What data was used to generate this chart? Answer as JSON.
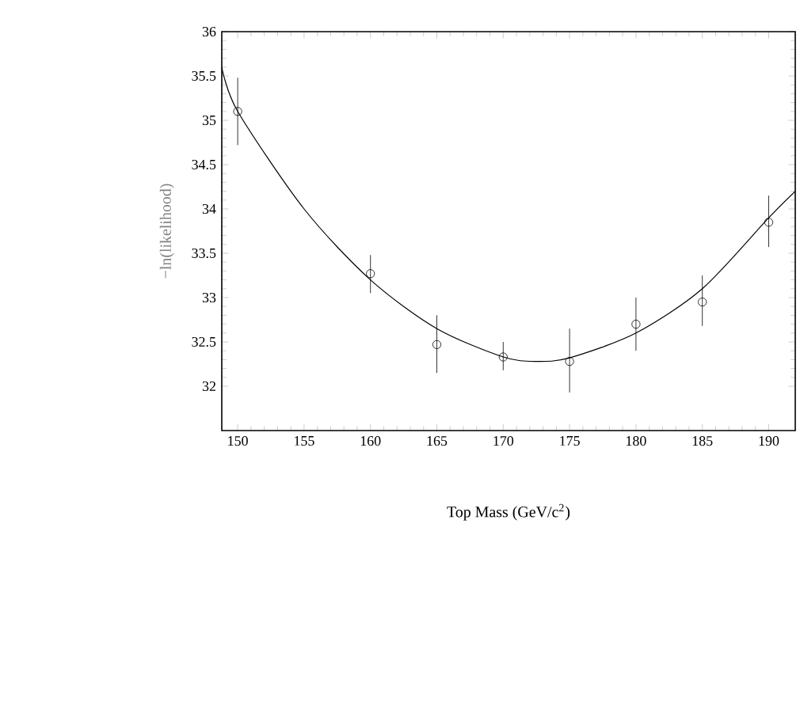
{
  "chart_data": {
    "type": "scatter",
    "xlabel": "Top Mass (GeV/c$^{2}$)",
    "ylabel": "−ln(likelihood)",
    "xlim": [
      148.8,
      192
    ],
    "ylim": [
      31.5,
      36
    ],
    "xticks": [
      150,
      155,
      160,
      165,
      170,
      175,
      180,
      185,
      190
    ],
    "yticks": [
      32,
      32.5,
      33,
      33.5,
      34,
      34.5,
      35,
      35.5,
      36
    ],
    "marker": "circle",
    "series": [
      {
        "color": "#000000",
        "x": [
          150,
          160,
          165,
          170,
          175,
          180,
          185,
          190
        ],
        "values": [
          35.1,
          33.27,
          32.47,
          32.33,
          32.28,
          32.7,
          32.95,
          33.85
        ],
        "errors": [
          [
            34.72,
            35.48
          ],
          [
            33.05,
            33.48
          ],
          [
            32.15,
            32.8
          ],
          [
            32.18,
            32.5
          ],
          [
            31.93,
            32.65
          ],
          [
            32.4,
            33.0
          ],
          [
            32.68,
            33.25
          ],
          [
            33.57,
            34.15
          ]
        ]
      },
      {
        "type": "line",
        "color": "#000000",
        "marker": "none",
        "x": [
          148.8,
          150,
          155,
          160,
          165,
          170,
          172.5,
          175,
          180,
          185,
          190,
          192
        ],
        "values": [
          35.6,
          35.1,
          34.0,
          33.2,
          32.65,
          32.33,
          32.28,
          32.32,
          32.6,
          33.1,
          33.9,
          34.2
        ]
      }
    ]
  }
}
